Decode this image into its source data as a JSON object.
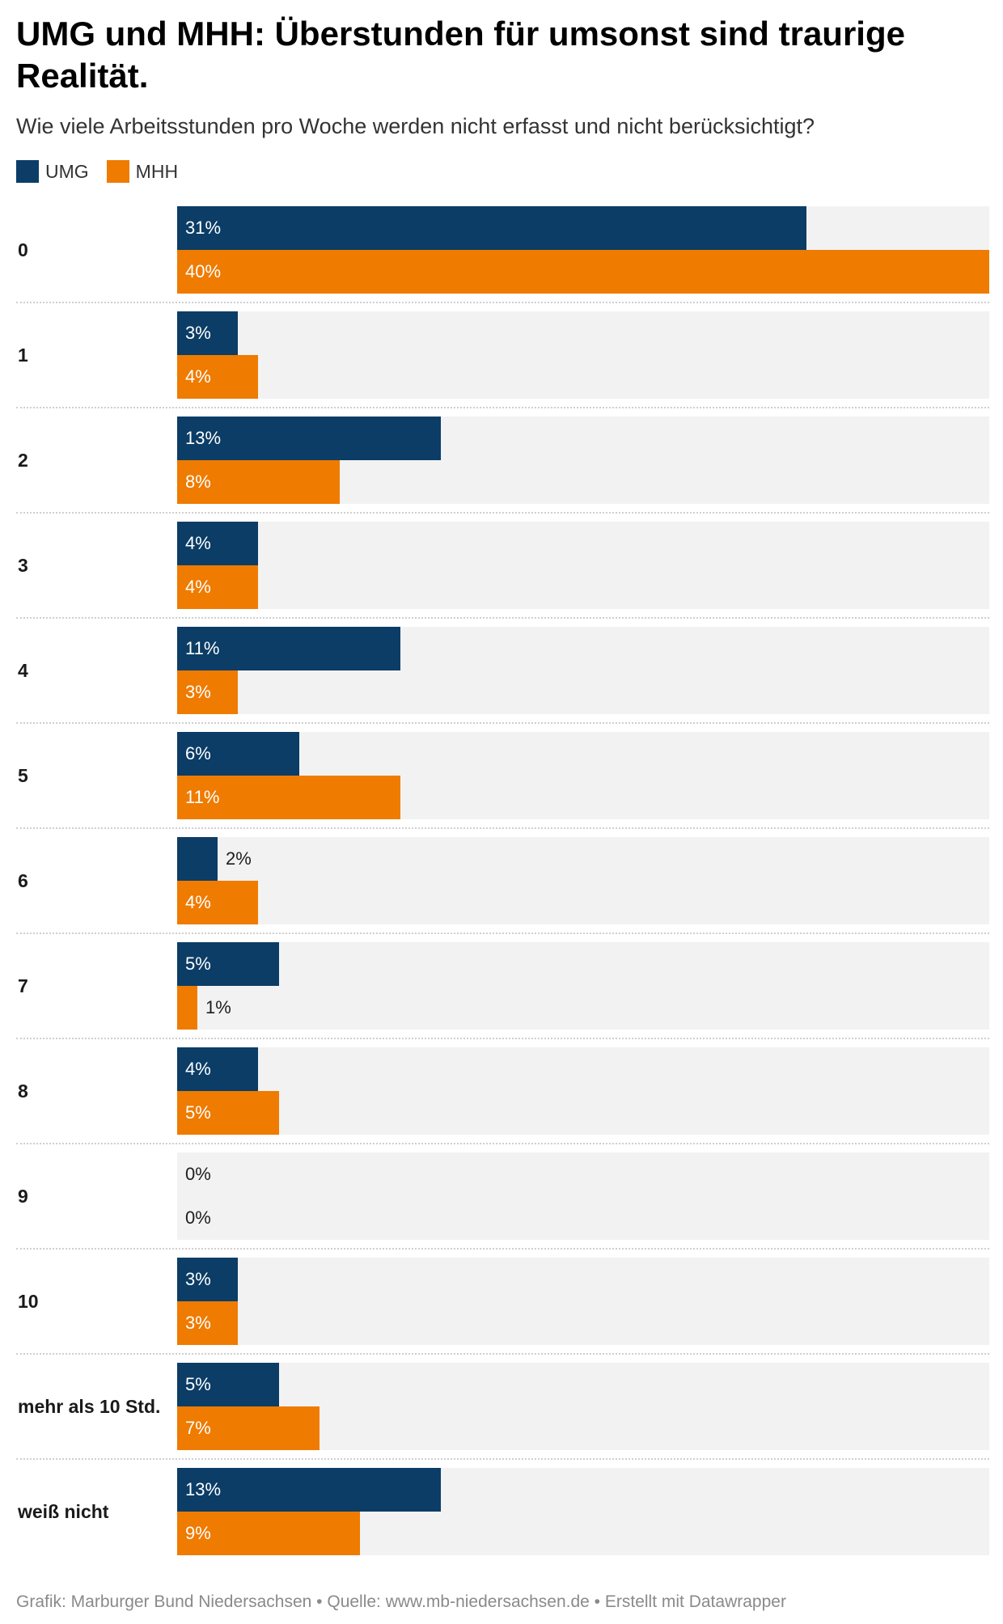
{
  "title": "UMG und MHH: Überstunden für umsonst sind traurige Realität.",
  "subtitle": "Wie viele Arbeitsstunden pro Woche werden nicht erfasst und nicht berücksichtigt?",
  "footer": "Grafik: Marburger Bund Niedersachsen • Quelle: www.mb-niedersachsen.de • Erstellt mit Datawrapper",
  "colors": {
    "UMG": "#0b3d66",
    "MHH": "#ef7b00",
    "background_bar": "#f2f2f2"
  },
  "legend": [
    {
      "name": "UMG",
      "color": "#0b3d66"
    },
    {
      "name": "MHH",
      "color": "#ef7b00"
    }
  ],
  "chart_data": {
    "type": "bar",
    "orientation": "horizontal",
    "grouped": true,
    "title": "UMG und MHH: Überstunden für umsonst sind traurige Realität.",
    "subtitle": "Wie viele Arbeitsstunden pro Woche werden nicht erfasst und nicht berücksichtigt?",
    "categories": [
      "0",
      "1",
      "2",
      "3",
      "4",
      "5",
      "6",
      "7",
      "8",
      "9",
      "10",
      "mehr als 10 Std.",
      "weiß nicht"
    ],
    "series": [
      {
        "name": "UMG",
        "color": "#0b3d66",
        "values": [
          31,
          3,
          13,
          4,
          11,
          6,
          2,
          5,
          4,
          0,
          3,
          5,
          13
        ]
      },
      {
        "name": "MHH",
        "color": "#ef7b00",
        "values": [
          40,
          4,
          8,
          4,
          3,
          11,
          4,
          1,
          5,
          0,
          3,
          7,
          9
        ]
      }
    ],
    "value_suffix": "%",
    "xlim": [
      0,
      40
    ],
    "legend_position": "top-left",
    "grid": false
  }
}
